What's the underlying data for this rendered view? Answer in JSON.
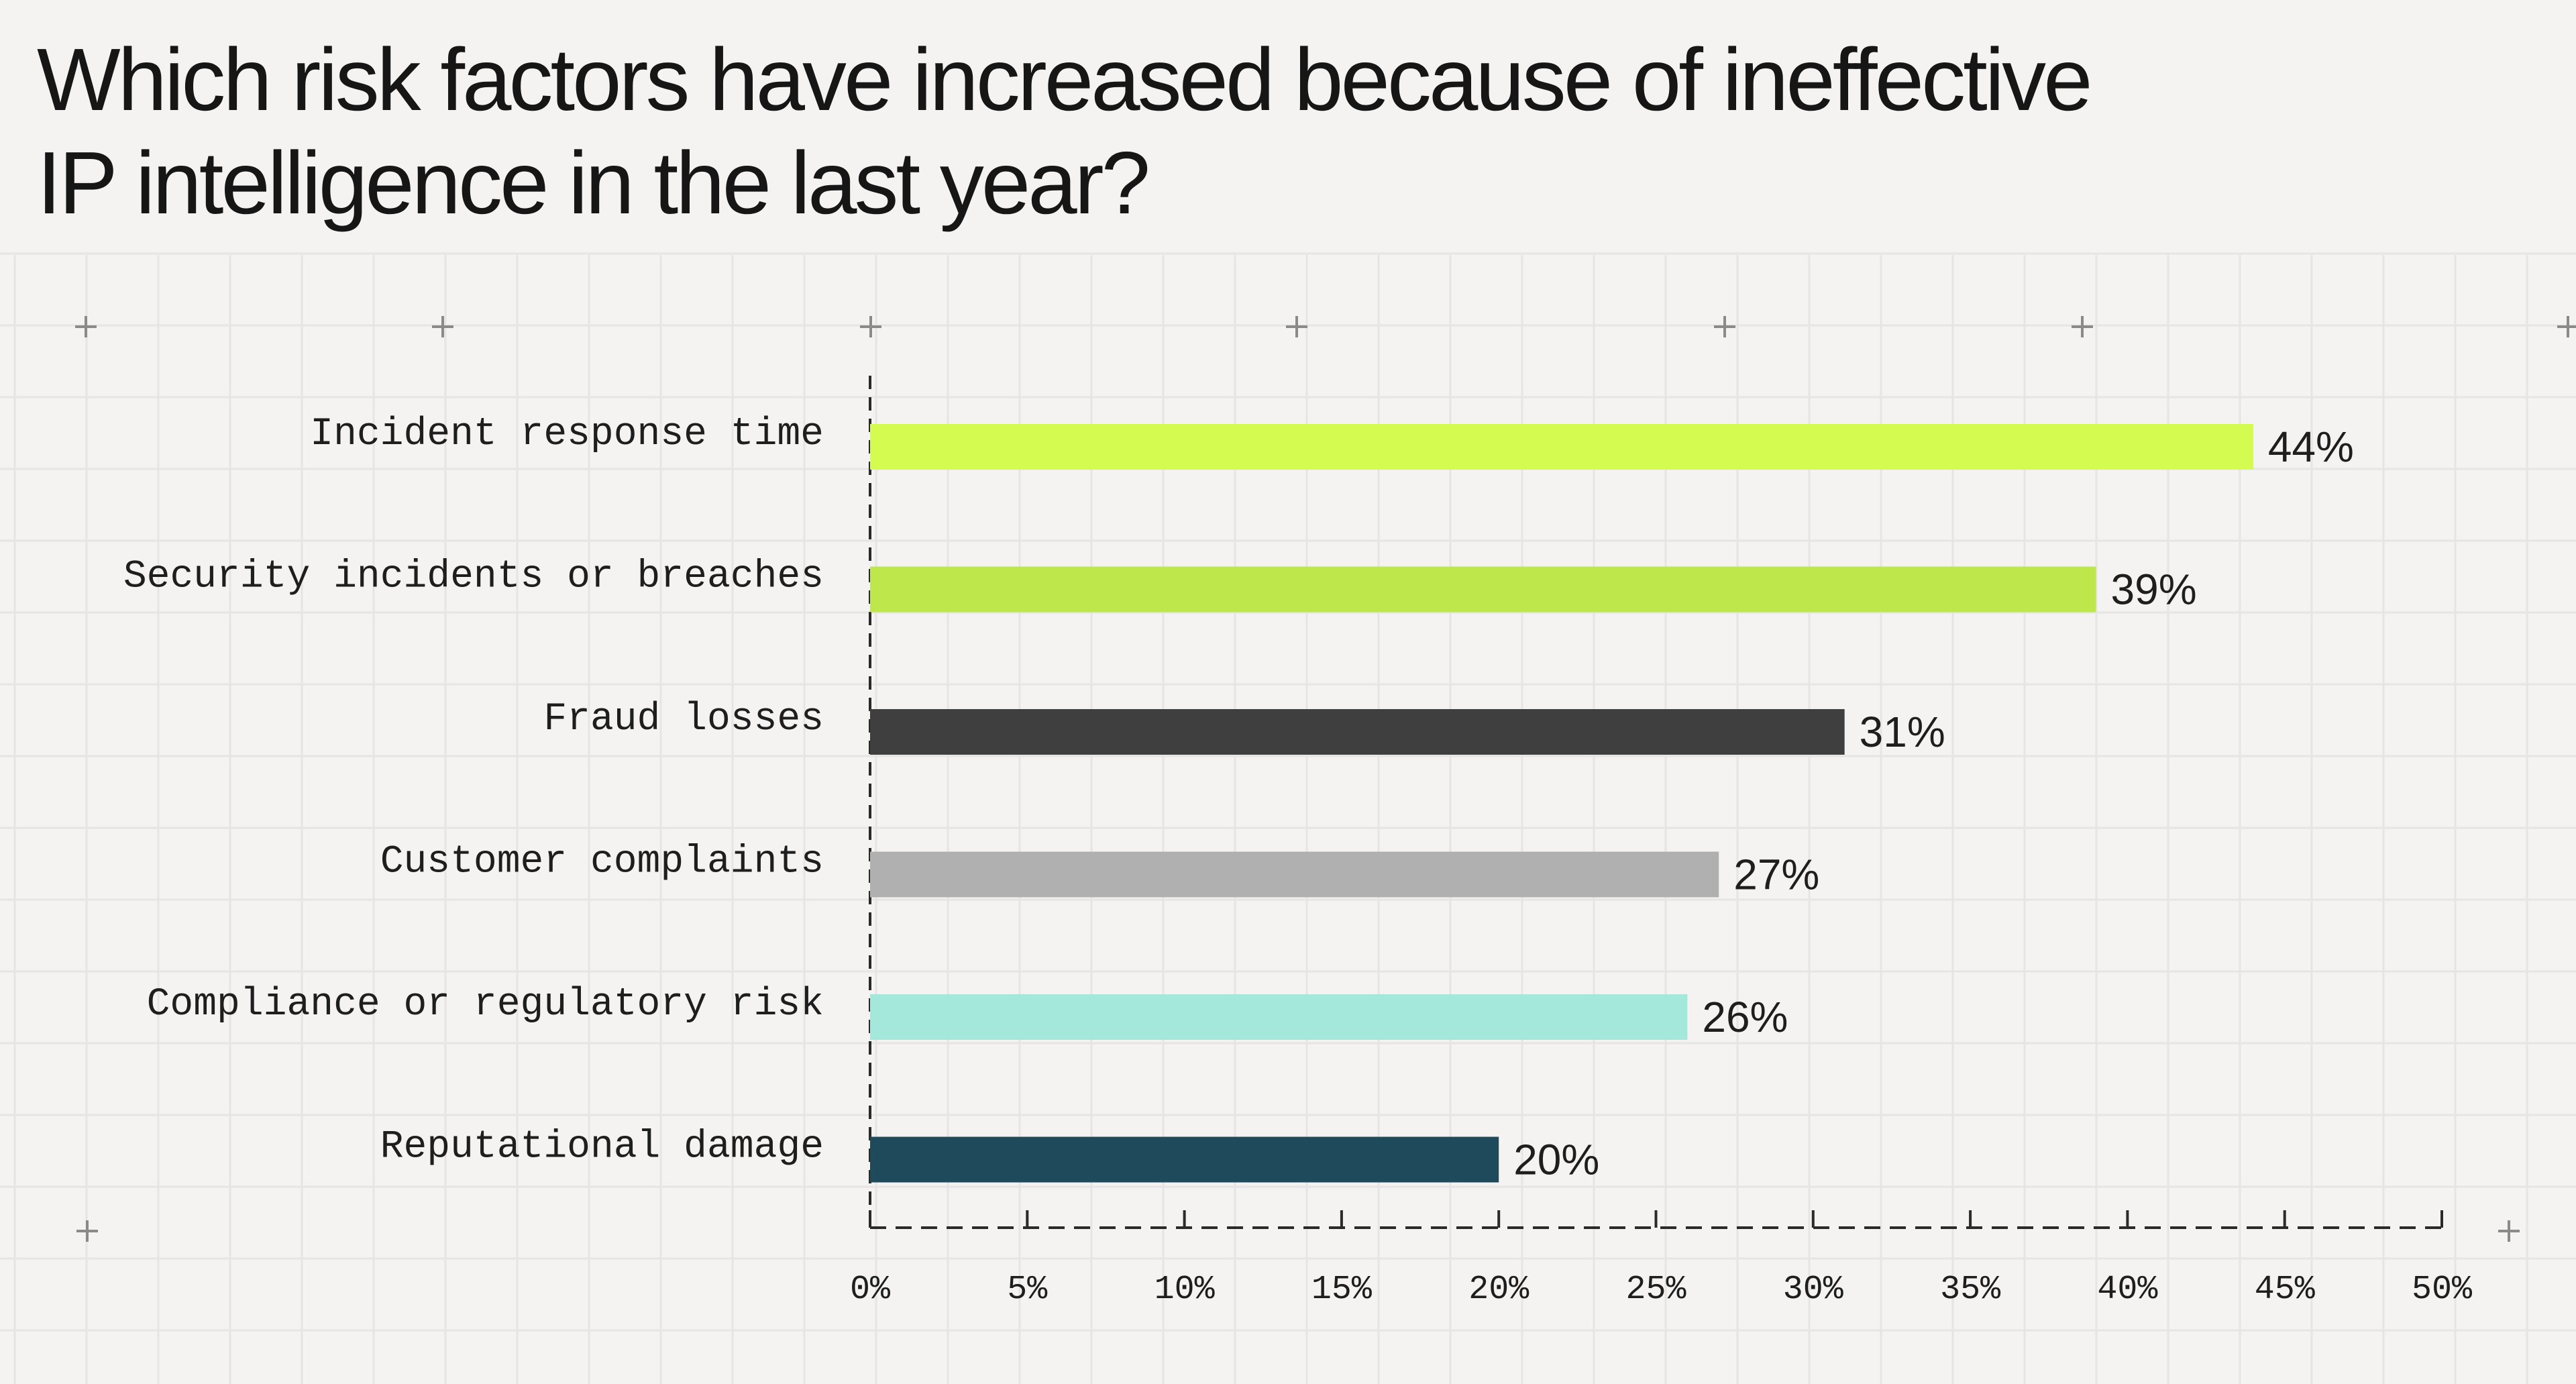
{
  "chart_data": {
    "type": "bar",
    "orientation": "horizontal",
    "title_lines": [
      "Which risk factors have increased because of ineffective",
      "IP intelligence in the last year?"
    ],
    "categories": [
      "Incident response time",
      "Security incidents or breaches",
      "Fraud losses",
      "Customer complaints",
      "Compliance or regulatory risk",
      "Reputational damage"
    ],
    "values": [
      44,
      39,
      31,
      27,
      26,
      20
    ],
    "value_labels": [
      "44%",
      "39%",
      "31%",
      "27%",
      "26%",
      "20%"
    ],
    "bar_colors": [
      "#d4fb50",
      "#bee74b",
      "#3f3f3f",
      "#b0b0b0",
      "#a3e8db",
      "#1e4a5b"
    ],
    "xlim": [
      0,
      50
    ],
    "xticks": [
      0,
      5,
      10,
      15,
      20,
      25,
      30,
      35,
      40,
      45,
      50
    ],
    "xtick_labels": [
      "0%",
      "5%",
      "10%",
      "15%",
      "20%",
      "25%",
      "30%",
      "35%",
      "40%",
      "45%",
      "50%"
    ],
    "grid": true,
    "legend": "none"
  }
}
